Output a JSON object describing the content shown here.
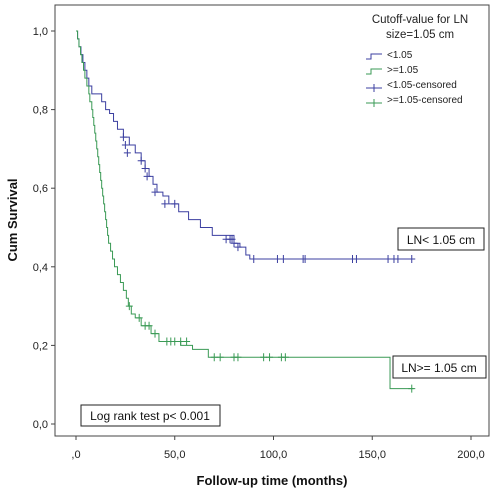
{
  "chart_data": {
    "type": "line",
    "xlabel": "Follow-up time (months)",
    "ylabel": "Cum Survival",
    "xlim": [
      0,
      200
    ],
    "ylim": [
      0,
      1.0
    ],
    "x_ticks": [
      0,
      50,
      100,
      150,
      200
    ],
    "x_tick_labels": [
      ",0",
      "50,0",
      "100,0",
      "150,0",
      "200,0"
    ],
    "y_ticks": [
      0,
      0.2,
      0.4,
      0.6,
      0.8,
      1.0
    ],
    "y_tick_labels": [
      "0,0",
      "0,2",
      "0,4",
      "0,6",
      "0,8",
      "1,0"
    ],
    "grid": false,
    "legend_position": "top-right",
    "legend_title": "Cutoff-value for LN size=1.05 cm",
    "legend_title_lines": [
      "Cutoff-value for LN",
      "size=1.05 cm"
    ],
    "series": [
      {
        "name": "<1.05",
        "censored_name": "<1.05-censored",
        "color": "#3b3fa0",
        "steps": [
          [
            0,
            1.0
          ],
          [
            0.8,
            0.98
          ],
          [
            1.5,
            0.96
          ],
          [
            2.5,
            0.94
          ],
          [
            3.5,
            0.92
          ],
          [
            4.5,
            0.9
          ],
          [
            5.5,
            0.88
          ],
          [
            6.5,
            0.86
          ],
          [
            8,
            0.84
          ],
          [
            13,
            0.82
          ],
          [
            15,
            0.8
          ],
          [
            17,
            0.79
          ],
          [
            19,
            0.77
          ],
          [
            21,
            0.75
          ],
          [
            24,
            0.73
          ],
          [
            27,
            0.71
          ],
          [
            30,
            0.69
          ],
          [
            33,
            0.67
          ],
          [
            35,
            0.65
          ],
          [
            37,
            0.63
          ],
          [
            39,
            0.61
          ],
          [
            41,
            0.59
          ],
          [
            44,
            0.58
          ],
          [
            47,
            0.56
          ],
          [
            52,
            0.54
          ],
          [
            57,
            0.52
          ],
          [
            63,
            0.5
          ],
          [
            69,
            0.48
          ],
          [
            80,
            0.46
          ],
          [
            83,
            0.45
          ],
          [
            86,
            0.43
          ],
          [
            88,
            0.42
          ],
          [
            171,
            0.42
          ]
        ],
        "censored": [
          [
            24,
            0.73
          ],
          [
            25,
            0.71
          ],
          [
            26,
            0.69
          ],
          [
            33,
            0.67
          ],
          [
            35,
            0.65
          ],
          [
            36,
            0.63
          ],
          [
            40,
            0.59
          ],
          [
            45,
            0.56
          ],
          [
            50,
            0.56
          ],
          [
            76,
            0.47
          ],
          [
            78,
            0.47
          ],
          [
            79,
            0.47
          ],
          [
            80,
            0.46
          ],
          [
            82,
            0.45
          ],
          [
            90,
            0.42
          ],
          [
            102,
            0.42
          ],
          [
            105,
            0.42
          ],
          [
            115,
            0.42
          ],
          [
            116,
            0.42
          ],
          [
            140,
            0.42
          ],
          [
            142,
            0.42
          ],
          [
            158,
            0.42
          ],
          [
            161,
            0.42
          ],
          [
            163,
            0.42
          ],
          [
            170,
            0.42
          ]
        ],
        "annotation": "LN< 1.05 cm"
      },
      {
        "name": ">=1.05",
        "censored_name": ">=1.05-censored",
        "color": "#3a9a55",
        "steps": [
          [
            0,
            1.0
          ],
          [
            0.8,
            0.98
          ],
          [
            1.5,
            0.96
          ],
          [
            2.3,
            0.94
          ],
          [
            3,
            0.92
          ],
          [
            3.8,
            0.9
          ],
          [
            4.5,
            0.88
          ],
          [
            5.5,
            0.86
          ],
          [
            6.5,
            0.84
          ],
          [
            7,
            0.82
          ],
          [
            8,
            0.8
          ],
          [
            8.5,
            0.78
          ],
          [
            9,
            0.76
          ],
          [
            9.5,
            0.74
          ],
          [
            10,
            0.72
          ],
          [
            10.5,
            0.7
          ],
          [
            11,
            0.68
          ],
          [
            11.5,
            0.66
          ],
          [
            12,
            0.64
          ],
          [
            12.5,
            0.62
          ],
          [
            13,
            0.6
          ],
          [
            13.5,
            0.58
          ],
          [
            14,
            0.56
          ],
          [
            14.5,
            0.54
          ],
          [
            15,
            0.52
          ],
          [
            15.5,
            0.5
          ],
          [
            16,
            0.48
          ],
          [
            16.5,
            0.46
          ],
          [
            17.5,
            0.44
          ],
          [
            18.5,
            0.42
          ],
          [
            19.5,
            0.4
          ],
          [
            21,
            0.38
          ],
          [
            22.5,
            0.36
          ],
          [
            24,
            0.34
          ],
          [
            25.5,
            0.32
          ],
          [
            26.5,
            0.3
          ],
          [
            28,
            0.28
          ],
          [
            30,
            0.27
          ],
          [
            33,
            0.25
          ],
          [
            38,
            0.23
          ],
          [
            42,
            0.21
          ],
          [
            50,
            0.21
          ],
          [
            53,
            0.2
          ],
          [
            59,
            0.19
          ],
          [
            67,
            0.17
          ],
          [
            158,
            0.17
          ],
          [
            159,
            0.09
          ],
          [
            171,
            0.09
          ]
        ],
        "censored": [
          [
            27,
            0.3
          ],
          [
            32,
            0.27
          ],
          [
            35,
            0.25
          ],
          [
            37,
            0.25
          ],
          [
            40,
            0.23
          ],
          [
            46,
            0.21
          ],
          [
            48,
            0.21
          ],
          [
            50,
            0.21
          ],
          [
            53,
            0.21
          ],
          [
            56,
            0.21
          ],
          [
            70,
            0.17
          ],
          [
            73,
            0.17
          ],
          [
            80,
            0.17
          ],
          [
            82,
            0.17
          ],
          [
            95,
            0.17
          ],
          [
            98,
            0.17
          ],
          [
            104,
            0.17
          ],
          [
            106,
            0.17
          ],
          [
            170,
            0.09
          ]
        ],
        "annotation": "LN>= 1.05 cm"
      }
    ],
    "annotations": [
      "Log rank test p< 0.001"
    ]
  }
}
